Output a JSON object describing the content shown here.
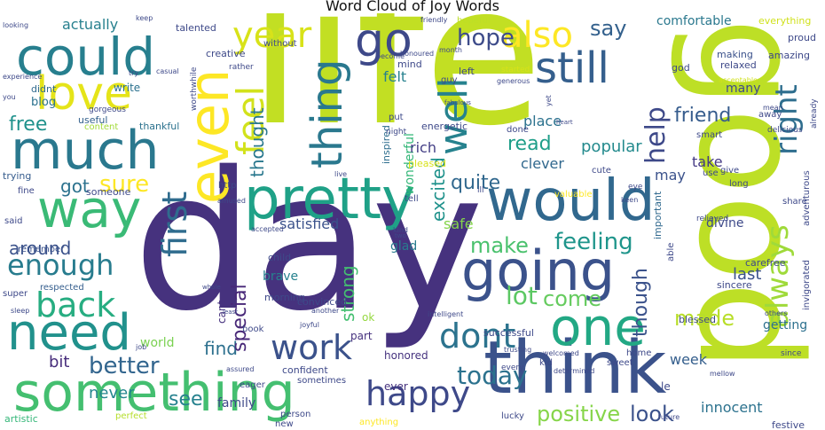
{
  "title": "Word Cloud of Joy Words",
  "palette": "viridis",
  "words": [
    {
      "text": "life",
      "color": "#c2df23"
    },
    {
      "text": "day",
      "color": "#46327e"
    },
    {
      "text": "good",
      "color": "#bddf26"
    },
    {
      "text": "think",
      "color": "#3b528b"
    },
    {
      "text": "something",
      "color": "#44bf70"
    },
    {
      "text": "pretty",
      "color": "#1fa187"
    },
    {
      "text": "would",
      "color": "#31688e"
    },
    {
      "text": "could",
      "color": "#277f8e"
    },
    {
      "text": "much",
      "color": "#2a788e"
    },
    {
      "text": "way",
      "color": "#3aba76"
    },
    {
      "text": "going",
      "color": "#3b528b"
    },
    {
      "text": "even",
      "color": "#fde725"
    },
    {
      "text": "love",
      "color": "#e5e419"
    },
    {
      "text": "need",
      "color": "#21918c"
    },
    {
      "text": "one",
      "color": "#22a884"
    },
    {
      "text": "still",
      "color": "#355f8d"
    },
    {
      "text": "well",
      "color": "#26828e"
    },
    {
      "text": "thing",
      "color": "#2a788e"
    },
    {
      "text": "also",
      "color": "#fde725"
    },
    {
      "text": "feel",
      "color": "#d2e21b"
    },
    {
      "text": "happy",
      "color": "#3e4989"
    },
    {
      "text": "back",
      "color": "#27ad81"
    },
    {
      "text": "enough",
      "color": "#287c8e"
    },
    {
      "text": "work",
      "color": "#3b528b"
    },
    {
      "text": "dont",
      "color": "#2c738e"
    },
    {
      "text": "year",
      "color": "#d8e219"
    },
    {
      "text": "go",
      "color": "#3e4989"
    },
    {
      "text": "first",
      "color": "#2f6c8e"
    },
    {
      "text": "always",
      "color": "#9fda3a"
    },
    {
      "text": "right",
      "color": "#2e6e8e"
    },
    {
      "text": "today",
      "color": "#2c728e"
    },
    {
      "text": "positive",
      "color": "#86d549"
    },
    {
      "text": "help",
      "color": "#3e4989"
    },
    {
      "text": "better",
      "color": "#32658e"
    },
    {
      "text": "hope",
      "color": "#3e4c8a"
    },
    {
      "text": "lot",
      "color": "#5cc863"
    },
    {
      "text": "make",
      "color": "#4ac16d"
    },
    {
      "text": "feeling",
      "color": "#1f958b"
    },
    {
      "text": "around",
      "color": "#3b528b"
    },
    {
      "text": "free",
      "color": "#20928c"
    },
    {
      "text": "say",
      "color": "#34618d"
    },
    {
      "text": "friend",
      "color": "#365c8d"
    },
    {
      "text": "come",
      "color": "#65cb5e"
    },
    {
      "text": "made",
      "color": "#b8de29"
    },
    {
      "text": "look",
      "color": "#3b528b"
    },
    {
      "text": "see",
      "color": "#26818e"
    },
    {
      "text": "find",
      "color": "#2d708e"
    },
    {
      "text": "got",
      "color": "#2c728e"
    },
    {
      "text": "sure",
      "color": "#fde725"
    },
    {
      "text": "special",
      "color": "#482878"
    },
    {
      "text": "strong",
      "color": "#44bf70"
    },
    {
      "text": "quite",
      "color": "#31688e"
    },
    {
      "text": "read",
      "color": "#1f9e89"
    },
    {
      "text": "excited",
      "color": "#20928c"
    },
    {
      "text": "thought",
      "color": "#2a788e"
    },
    {
      "text": "though",
      "color": "#3b528b"
    },
    {
      "text": "actually",
      "color": "#27808e"
    },
    {
      "text": "bit",
      "color": "#472d7b"
    },
    {
      "text": "never",
      "color": "#24868e"
    },
    {
      "text": "place",
      "color": "#2c728e"
    },
    {
      "text": "popular",
      "color": "#238a8d"
    },
    {
      "text": "clever",
      "color": "#31688e"
    },
    {
      "text": "take",
      "color": "#443983"
    },
    {
      "text": "may",
      "color": "#3b528b"
    },
    {
      "text": "last",
      "color": "#3b528b"
    },
    {
      "text": "week",
      "color": "#355f8d"
    },
    {
      "text": "world",
      "color": "#7ad151"
    },
    {
      "text": "family",
      "color": "#3e4989"
    },
    {
      "text": "satisfied",
      "color": "#3b528b"
    },
    {
      "text": "safe",
      "color": "#84d44b"
    },
    {
      "text": "glad",
      "color": "#287c8e"
    },
    {
      "text": "wonderful",
      "color": "#35b779"
    },
    {
      "text": "felt",
      "color": "#26818e"
    },
    {
      "text": "rich",
      "color": "#433e85"
    },
    {
      "text": "innocent",
      "color": "#2c728e"
    },
    {
      "text": "getting",
      "color": "#2d708e"
    },
    {
      "text": "comfortable",
      "color": "#2a788e"
    },
    {
      "text": "divine",
      "color": "#3e4a89"
    },
    {
      "text": "blog",
      "color": "#2c728e"
    },
    {
      "text": "write",
      "color": "#2c728e"
    },
    {
      "text": "brave",
      "color": "#26828e"
    },
    {
      "text": "honored",
      "color": "#46337f"
    },
    {
      "text": "ever",
      "color": "#46327e"
    },
    {
      "text": "ok",
      "color": "#95d840"
    },
    {
      "text": "part",
      "color": "#46327e"
    },
    {
      "text": "cant",
      "color": "#46327e"
    },
    {
      "text": "inspired",
      "color": "#2e6e8e"
    },
    {
      "text": "important",
      "color": "#30698e"
    },
    {
      "text": "many",
      "color": "#3e4989"
    },
    {
      "text": "talented",
      "color": "#3e4989"
    },
    {
      "text": "creative",
      "color": "#3e4989"
    },
    {
      "text": "didnt",
      "color": "#306a8e"
    },
    {
      "text": "useful",
      "color": "#34618d"
    },
    {
      "text": "thankful",
      "color": "#2c728e"
    },
    {
      "text": "someone",
      "color": "#3e4989"
    },
    {
      "text": "trying",
      "color": "#365c8d"
    },
    {
      "text": "respected",
      "color": "#355e8d"
    },
    {
      "text": "remember",
      "color": "#3b528b"
    },
    {
      "text": "super",
      "color": "#3e4989"
    },
    {
      "text": "said",
      "color": "#3e4989"
    },
    {
      "text": "energetic",
      "color": "#3e4989"
    },
    {
      "text": "mind",
      "color": "#3e4989"
    },
    {
      "text": "making",
      "color": "#3b528b"
    },
    {
      "text": "relaxed",
      "color": "#3e4989"
    },
    {
      "text": "proud",
      "color": "#3e4989"
    },
    {
      "text": "amazing",
      "color": "#3e4989"
    },
    {
      "text": "everything",
      "color": "#d0e11c"
    },
    {
      "text": "hopeful",
      "color": "#bddf26"
    },
    {
      "text": "confident",
      "color": "#3e4989"
    },
    {
      "text": "book",
      "color": "#3e4989"
    },
    {
      "text": "person",
      "color": "#3e4989"
    },
    {
      "text": "successful",
      "color": "#3e4989"
    },
    {
      "text": "convinced",
      "color": "#3e4989"
    },
    {
      "text": "child",
      "color": "#3e4989"
    },
    {
      "text": "morning",
      "color": "#3e4989"
    },
    {
      "text": "kid",
      "color": "#3e4989"
    },
    {
      "text": "home",
      "color": "#3e4989"
    },
    {
      "text": "sweet",
      "color": "#3e4989"
    },
    {
      "text": "sincere",
      "color": "#3e4989"
    },
    {
      "text": "blessed",
      "color": "#3e4989"
    },
    {
      "text": "carefree",
      "color": "#3e4989"
    },
    {
      "text": "le",
      "color": "#3e4989"
    },
    {
      "text": "festive",
      "color": "#3e4989"
    },
    {
      "text": "artistic",
      "color": "#35b779"
    },
    {
      "text": "perfect",
      "color": "#b5de2b"
    },
    {
      "text": "sometimes",
      "color": "#3e4989"
    },
    {
      "text": "eager",
      "color": "#3e4989"
    },
    {
      "text": "lucky",
      "color": "#3e4989"
    },
    {
      "text": "anything",
      "color": "#fde725"
    },
    {
      "text": "new",
      "color": "#3e4989"
    },
    {
      "text": "without",
      "color": "#3e4989"
    },
    {
      "text": "guy",
      "color": "#3e4989"
    },
    {
      "text": "put",
      "color": "#3e4989"
    },
    {
      "text": "left",
      "color": "#3e4989"
    },
    {
      "text": "god",
      "color": "#3e4989"
    },
    {
      "text": "smart",
      "color": "#3e4989"
    },
    {
      "text": "share",
      "color": "#3e4989"
    },
    {
      "text": "long",
      "color": "#3e4989"
    },
    {
      "text": "give",
      "color": "#3e4989"
    },
    {
      "text": "use",
      "color": "#3e4989"
    },
    {
      "text": "delicious",
      "color": "#3e4989"
    },
    {
      "text": "away",
      "color": "#3e4989"
    },
    {
      "text": "mean",
      "color": "#3e4989"
    },
    {
      "text": "able",
      "color": "#3e4989"
    },
    {
      "text": "relieved",
      "color": "#3e4989"
    },
    {
      "text": "invigorated",
      "color": "#3e4989"
    },
    {
      "text": "adventurous",
      "color": "#3e4989"
    },
    {
      "text": "pleased",
      "color": "#d8e219"
    },
    {
      "text": "content",
      "color": "#a2da37"
    },
    {
      "text": "gorgeous",
      "color": "#3e4989"
    },
    {
      "text": "worthwhile",
      "color": "#3e4989"
    },
    {
      "text": "http",
      "color": "#3e4989"
    },
    {
      "text": "fine",
      "color": "#3e4989"
    },
    {
      "text": "amused",
      "color": "#3e4989"
    },
    {
      "text": "tell",
      "color": "#3e4989"
    },
    {
      "text": "ill",
      "color": "#3e4989"
    },
    {
      "text": "valuable",
      "color": "#fde725"
    },
    {
      "text": "cute",
      "color": "#3e4989"
    },
    {
      "text": "keen",
      "color": "#3e4989"
    },
    {
      "text": "eye",
      "color": "#3e4989"
    },
    {
      "text": "done",
      "color": "#3e4989"
    },
    {
      "text": "night",
      "color": "#3e4989"
    },
    {
      "text": "fabulous",
      "color": "#3e4989"
    },
    {
      "text": "heart",
      "color": "#3e4989"
    },
    {
      "text": "started",
      "color": "#d8e219"
    },
    {
      "text": "generous",
      "color": "#3e4989"
    },
    {
      "text": "yet",
      "color": "#3e4989"
    },
    {
      "text": "acceptable",
      "color": "#d0e11c"
    },
    {
      "text": "already",
      "color": "#3e4989"
    },
    {
      "text": "friendly",
      "color": "#3e4989"
    },
    {
      "text": "become",
      "color": "#3e4989"
    },
    {
      "text": "honoured",
      "color": "#3e4989"
    },
    {
      "text": "month",
      "color": "#3e4989"
    },
    {
      "text": "keep",
      "color": "#3e4989"
    },
    {
      "text": "try",
      "color": "#3e4989"
    },
    {
      "text": "casual",
      "color": "#3e4989"
    },
    {
      "text": "rather",
      "color": "#3e4989"
    },
    {
      "text": "experience",
      "color": "#3e4989"
    },
    {
      "text": "looking",
      "color": "#3e4989"
    },
    {
      "text": "you",
      "color": "#3e4989"
    },
    {
      "text": "welcomed",
      "color": "#3e4989"
    },
    {
      "text": "determined",
      "color": "#3e4989"
    },
    {
      "text": "trusting",
      "color": "#3e4989"
    },
    {
      "text": "joyful",
      "color": "#3e4989"
    },
    {
      "text": "another",
      "color": "#3e4989"
    },
    {
      "text": "least",
      "color": "#3e4989"
    },
    {
      "text": "whole",
      "color": "#3e4989"
    },
    {
      "text": "intelligent",
      "color": "#3e4989"
    },
    {
      "text": "future",
      "color": "#3e4989"
    },
    {
      "text": "since",
      "color": "#3e4989"
    },
    {
      "text": "mellow",
      "color": "#3e4989"
    },
    {
      "text": "others",
      "color": "#3e4989"
    },
    {
      "text": "accepted",
      "color": "#3e4989"
    },
    {
      "text": "kind",
      "color": "#3e4989"
    },
    {
      "text": "two",
      "color": "#3e4989"
    },
    {
      "text": "every",
      "color": "#3e4989"
    },
    {
      "text": "sleep",
      "color": "#3e4989"
    },
    {
      "text": "job",
      "color": "#3e4989"
    },
    {
      "text": "assured",
      "color": "#3e4989"
    },
    {
      "text": "live",
      "color": "#3e4989"
    },
    {
      "text": "mellow2",
      "color": "#3e4989"
    }
  ]
}
